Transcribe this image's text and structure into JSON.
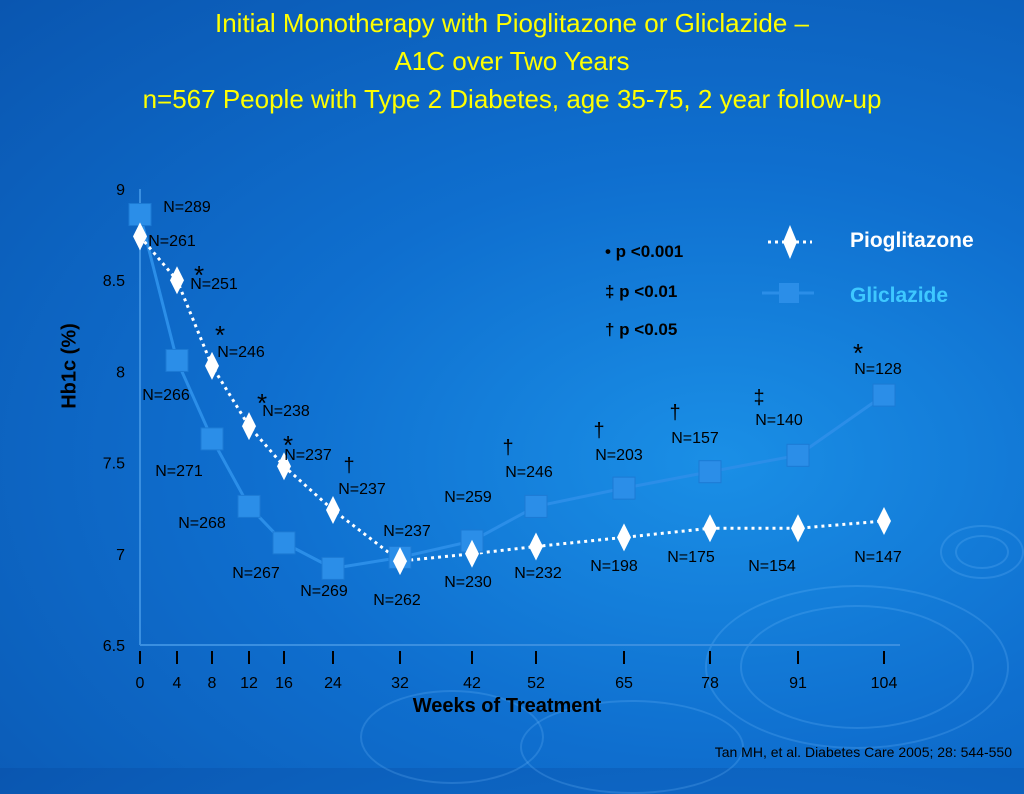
{
  "title": {
    "line1": "Initial Monotherapy with Pioglitazone or Gliclazide –",
    "line2": "A1C over Two Years",
    "line3": "n=567 People with Type 2 Diabetes, age 35-75, 2 year follow-up"
  },
  "legend": {
    "pioglitazone": "Pioglitazone",
    "gliclazide": "Gliclazide"
  },
  "significance": {
    "line1": "• p <0.001",
    "line2": "‡ p <0.01",
    "line3": "† p <0.05"
  },
  "citation": "Tan MH, et al. Diabetes Care 2005; 28: 544-550",
  "colors": {
    "pioglitazone": "#ffffff",
    "gliclazide": "#2b8ee8",
    "title": "#ffff00",
    "gliclazide_legend_text": "#3ec8ff"
  },
  "chart_data": {
    "type": "line",
    "xlabel": "Weeks of Treatment",
    "ylabel": "Hb1c (%)",
    "x": [
      0,
      4,
      8,
      12,
      16,
      24,
      32,
      42,
      52,
      65,
      78,
      91,
      104
    ],
    "x_ticks": [
      0,
      4,
      8,
      12,
      16,
      24,
      32,
      42,
      52,
      65,
      78,
      91,
      104
    ],
    "y_ticks": [
      6.5,
      7,
      7.5,
      8,
      8.5,
      9
    ],
    "ylim": [
      6.5,
      9
    ],
    "series": [
      {
        "name": "Pioglitazone",
        "marker": "diamond",
        "line": "dotted",
        "values": [
          8.74,
          8.5,
          8.03,
          7.7,
          7.48,
          7.24,
          6.96,
          7.0,
          7.04,
          7.09,
          7.14,
          7.14,
          7.18
        ],
        "n_labels": [
          "N=261",
          "N=251",
          "N=246",
          "N=238",
          "N=237",
          "N=237",
          "N=237",
          "N=230",
          "N=232",
          "N=198",
          "N=175",
          "N=154",
          "N=147"
        ]
      },
      {
        "name": "Gliclazide",
        "marker": "square",
        "line": "solid",
        "values": [
          8.86,
          8.06,
          7.63,
          7.26,
          7.06,
          6.92,
          6.98,
          7.07,
          7.26,
          7.36,
          7.45,
          7.54,
          7.87
        ],
        "n_labels": [
          "N=289",
          "N=266",
          "N=271",
          "N=268",
          "N=267",
          "N=269",
          "N=262",
          "N=259",
          "N=246",
          "N=203",
          "N=157",
          "N=140",
          "N=128"
        ]
      }
    ],
    "significance_markers": [
      "",
      "*",
      "*",
      "*",
      "*",
      "†",
      "",
      "",
      "†",
      "†",
      "†",
      "‡",
      "*"
    ]
  }
}
